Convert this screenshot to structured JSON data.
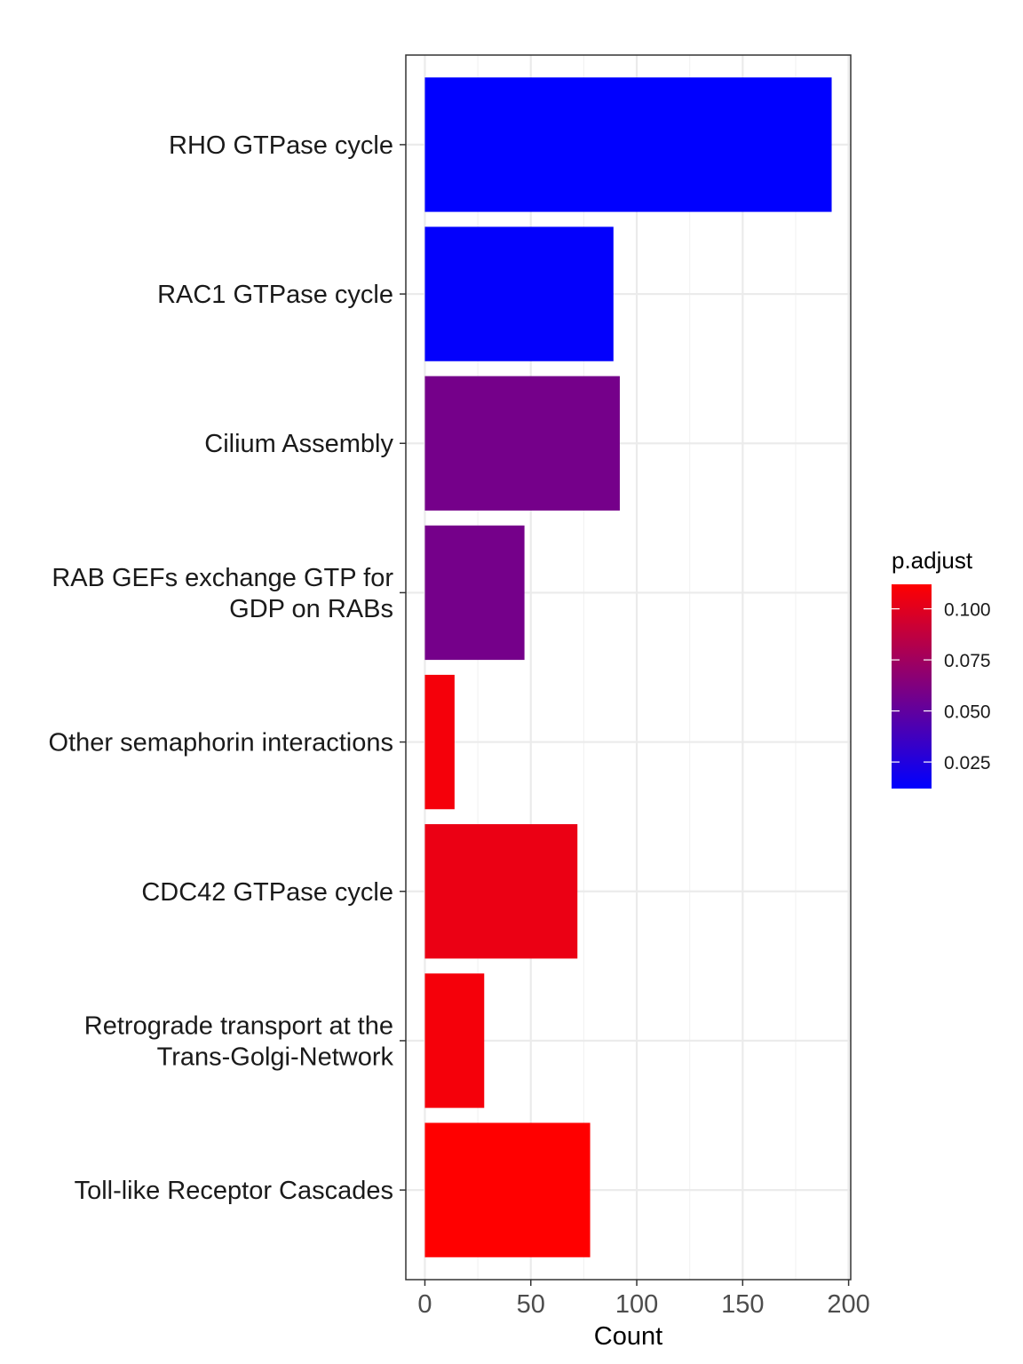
{
  "chart_data": {
    "type": "bar",
    "orientation": "horizontal",
    "categories": [
      [
        "RHO GTPase cycle"
      ],
      [
        "RAC1 GTPase cycle"
      ],
      [
        "Cilium Assembly"
      ],
      [
        "RAB GEFs exchange GTP for",
        "GDP on RABs"
      ],
      [
        "Other semaphorin interactions"
      ],
      [
        "CDC42 GTPase cycle"
      ],
      [
        "Retrograde transport at the",
        "Trans-Golgi-Network"
      ],
      [
        "Toll-like Receptor Cascades"
      ]
    ],
    "values": [
      192,
      89,
      92,
      47,
      14,
      72,
      28,
      78
    ],
    "p_adjust": [
      0.012,
      0.013,
      0.058,
      0.058,
      0.108,
      0.104,
      0.108,
      0.112
    ],
    "xlabel": "Count",
    "xlim": [
      -9,
      201
    ],
    "xticks": [
      0,
      50,
      100,
      150,
      200
    ],
    "grid": true,
    "colorbar": {
      "title": "p.adjust",
      "range": [
        0.012,
        0.112
      ],
      "ticks": [
        0.025,
        0.05,
        0.075,
        0.1
      ],
      "tick_labels": [
        "0.025",
        "0.050",
        "0.075",
        "0.100"
      ],
      "low_color": "#0000ff",
      "high_color": "#ff0000",
      "placement": "right"
    }
  }
}
